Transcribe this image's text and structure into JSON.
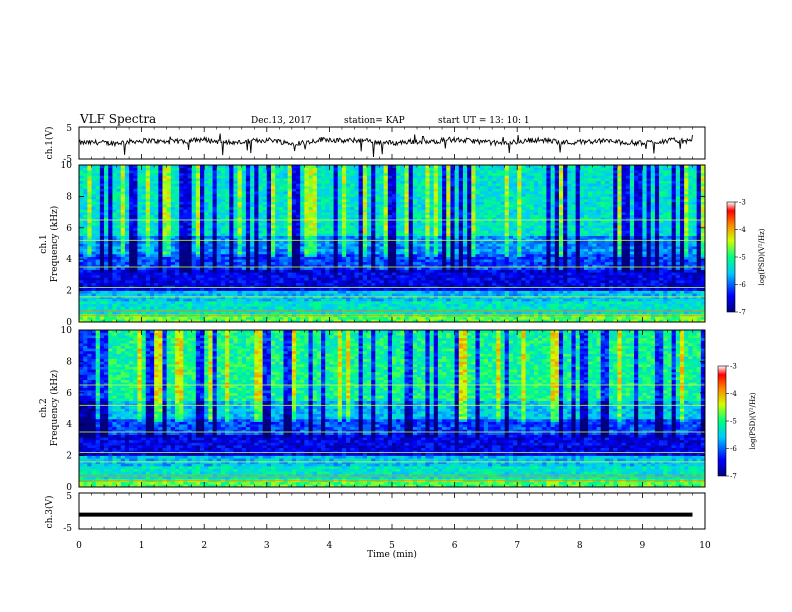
{
  "header": {
    "title": "VLF Spectra",
    "date": "Dec.13, 2017",
    "station": "station= KAP",
    "start": "start  UT =   13: 10: 1"
  },
  "chart_data": [
    {
      "type": "line",
      "ylabel": "ch.1(V)",
      "ylim": [
        -5,
        5
      ],
      "yticks": [
        "5",
        "-5"
      ],
      "xlim": [
        0,
        9.8
      ],
      "description_level": [
        0.3,
        0.5,
        0.2,
        0.8,
        1.1,
        0.6,
        0.9,
        1.4,
        0.7,
        0.4,
        1.0,
        1.3,
        0.2,
        0.5,
        1.6,
        0.9,
        1.2,
        0.6,
        0.3,
        0.8,
        0.5,
        1.4,
        1.1,
        0.7,
        0.2,
        0.6,
        1.3,
        0.9,
        0.4,
        0.8,
        1.0,
        0.5,
        0.3,
        0.7,
        1.2,
        0.6
      ]
    },
    {
      "type": "heatmap",
      "ylabel_top": "ch.1",
      "ylabel": "Frequency (kHz)",
      "ylim": [
        0,
        10
      ],
      "yticks": [
        "0",
        "2",
        "4",
        "6",
        "8",
        "10"
      ],
      "colorbar": {
        "label": "log(PSD)(V²/Hz)",
        "ticks": [
          "-3",
          "-4",
          "-5",
          "-6",
          "-7"
        ],
        "range": [
          -7,
          -3
        ]
      }
    },
    {
      "type": "heatmap",
      "ylabel_top": "ch.2",
      "ylabel": "Frequency (kHz)",
      "ylim": [
        0,
        10
      ],
      "yticks": [
        "0",
        "2",
        "4",
        "6",
        "8",
        "10"
      ],
      "colorbar": {
        "label": "log(PSD)(V²/Hz)",
        "ticks": [
          "-3",
          "-4",
          "-5",
          "-6",
          "-7"
        ],
        "range": [
          -7,
          -3
        ]
      }
    },
    {
      "type": "line",
      "ylabel": "ch.3(V)",
      "ylim": [
        -5,
        5
      ],
      "yticks": [
        "5",
        "-5"
      ],
      "xlim": [
        0,
        9.8
      ],
      "values_constant": -1
    }
  ],
  "xaxis": {
    "label": "Time (min)",
    "range": [
      0,
      10
    ],
    "ticks": [
      "0",
      "1",
      "2",
      "3",
      "4",
      "5",
      "6",
      "7",
      "8",
      "9",
      "10"
    ]
  },
  "colors": {
    "low": "#00007f",
    "mid": "#00c8a0",
    "high": "#ff0000",
    "line": "#000000"
  }
}
